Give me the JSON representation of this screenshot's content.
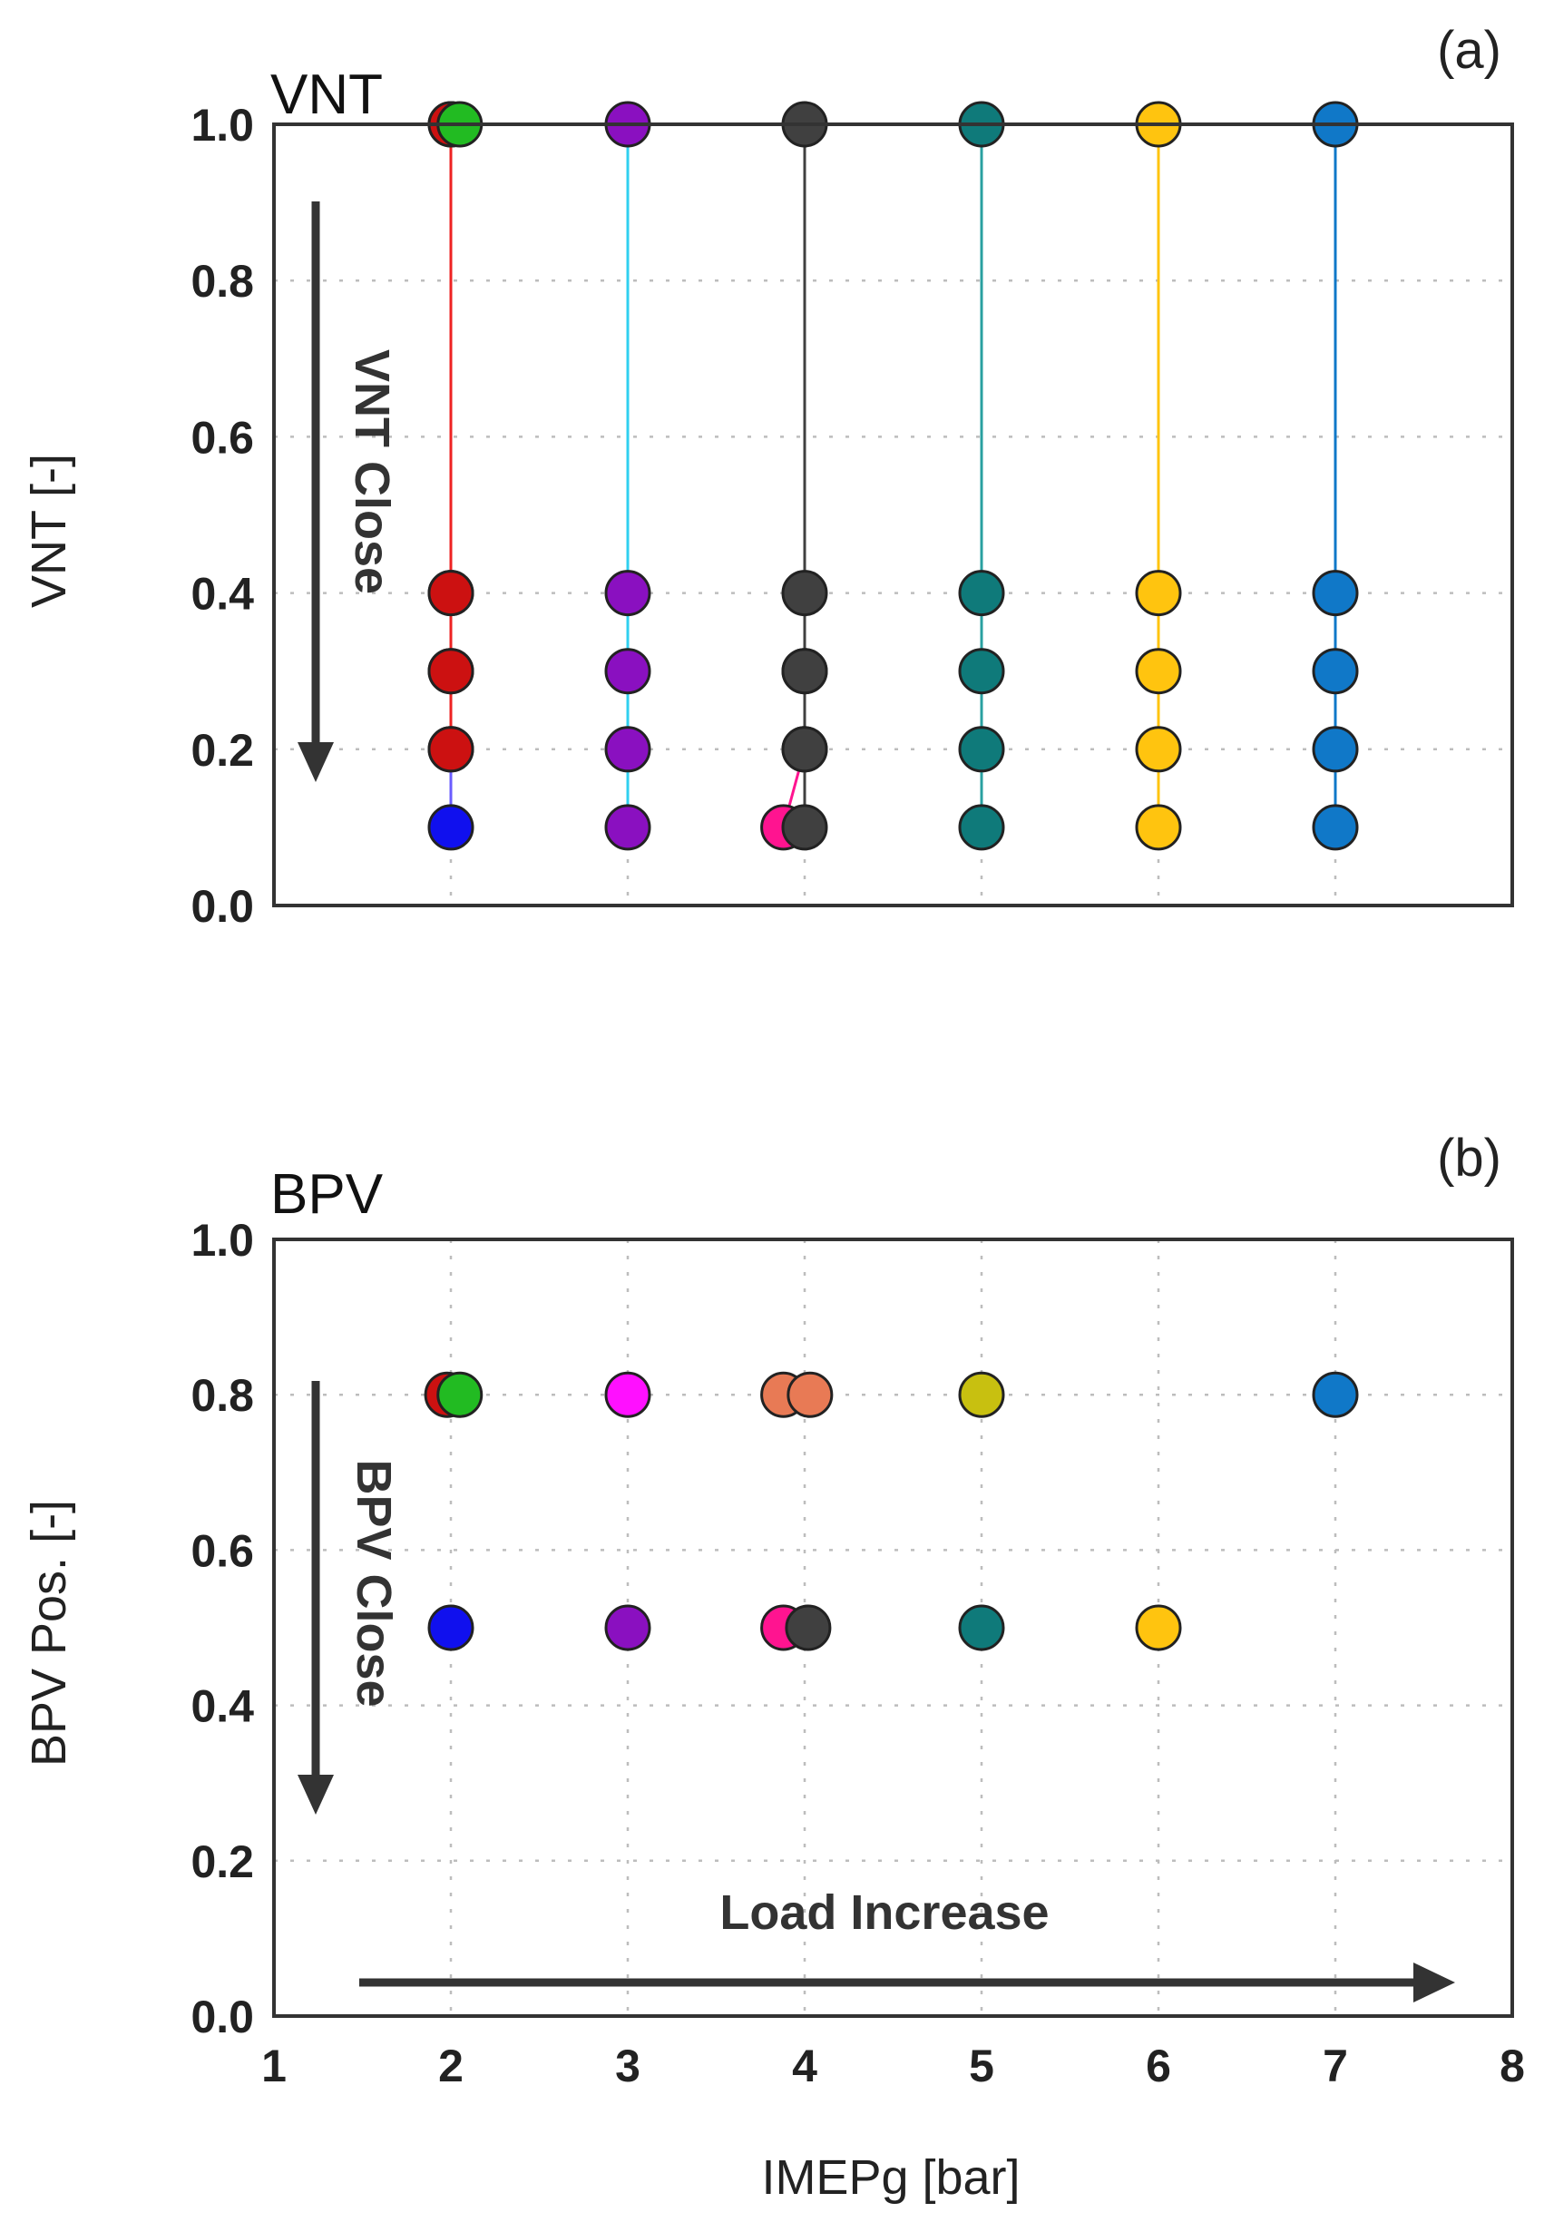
{
  "chart_data": [
    {
      "type": "scatter",
      "panel": "(a)",
      "title": "VNT",
      "xlabel": "",
      "ylabel": "VNT [-]",
      "xlim": [
        1,
        8
      ],
      "ylim": [
        0,
        1.0
      ],
      "yticks": [
        "0.0",
        "0.2",
        "0.4",
        "0.6",
        "0.8",
        "1.0"
      ],
      "grid": true,
      "annotation": "VNT Close",
      "series": [
        {
          "name": "2 bar blue",
          "color": "#1010ee",
          "line_color": "#6a5cff",
          "x": [
            2,
            2,
            2,
            2,
            2
          ],
          "y": [
            1.0,
            0.4,
            0.3,
            0.2,
            0.1
          ]
        },
        {
          "name": "2 bar red",
          "color": "#cc1111",
          "line_color": "#ee2222",
          "x": [
            2,
            2,
            2,
            2
          ],
          "y": [
            1.0,
            0.4,
            0.3,
            0.2
          ]
        },
        {
          "name": "2 bar green",
          "color": "#22bb22",
          "line_color": "#22bb22",
          "x": [
            2.05
          ],
          "y": [
            1.0
          ]
        },
        {
          "name": "3 bar purple",
          "color": "#8a10c0",
          "line_color": "#30d0f0",
          "x": [
            3,
            3,
            3,
            3,
            3
          ],
          "y": [
            1.0,
            0.4,
            0.3,
            0.2,
            0.1
          ]
        },
        {
          "name": "4 bar pink",
          "color": "#ff1490",
          "line_color": "#ff1490",
          "x": [
            3.88,
            4,
            4
          ],
          "y": [
            0.1,
            0.2,
            0.3
          ]
        },
        {
          "name": "4 bar black",
          "color": "#404040",
          "line_color": "#404040",
          "x": [
            4,
            4,
            4,
            4,
            4
          ],
          "y": [
            1.0,
            0.4,
            0.3,
            0.2,
            0.1
          ]
        },
        {
          "name": "5 bar teal",
          "color": "#0f7a7a",
          "line_color": "#2aa0a0",
          "x": [
            5,
            5,
            5,
            5,
            5
          ],
          "y": [
            1.0,
            0.4,
            0.3,
            0.2,
            0.1
          ]
        },
        {
          "name": "6 bar yellow",
          "color": "#ffc40f",
          "line_color": "#ffc40f",
          "x": [
            6,
            6,
            6,
            6,
            6
          ],
          "y": [
            1.0,
            0.4,
            0.3,
            0.2,
            0.1
          ]
        },
        {
          "name": "7 bar blue",
          "color": "#1078c8",
          "line_color": "#1078c8",
          "x": [
            7,
            7,
            7,
            7,
            7
          ],
          "y": [
            1.0,
            0.4,
            0.3,
            0.2,
            0.1
          ]
        }
      ]
    },
    {
      "type": "scatter",
      "panel": "(b)",
      "title": "BPV",
      "xlabel": "IMEPg [bar]",
      "ylabel": "BPV Pos. [-]",
      "xlim": [
        1,
        8
      ],
      "ylim": [
        0,
        1.0
      ],
      "xticks": [
        "1",
        "2",
        "3",
        "4",
        "5",
        "6",
        "7",
        "8"
      ],
      "yticks": [
        "0.0",
        "0.2",
        "0.4",
        "0.6",
        "0.8",
        "1.0"
      ],
      "grid": true,
      "annotations": [
        "BPV Close",
        "Load Increase"
      ],
      "series": [
        {
          "name": "2 bar red",
          "color": "#cc1111",
          "x": [
            1.98
          ],
          "y": [
            0.8
          ]
        },
        {
          "name": "2 bar green",
          "color": "#22bb22",
          "x": [
            2.05
          ],
          "y": [
            0.8
          ]
        },
        {
          "name": "2 bar blue",
          "color": "#1010ee",
          "x": [
            2
          ],
          "y": [
            0.5
          ]
        },
        {
          "name": "3 bar magenta",
          "color": "#ff10ff",
          "x": [
            3
          ],
          "y": [
            0.8
          ]
        },
        {
          "name": "3 bar purple",
          "color": "#8a10c0",
          "x": [
            3
          ],
          "y": [
            0.5
          ]
        },
        {
          "name": "4 bar orange",
          "color": "#e87a55",
          "x": [
            3.88,
            4.03
          ],
          "y": [
            0.8,
            0.8
          ]
        },
        {
          "name": "4 bar pink",
          "color": "#ff1490",
          "x": [
            3.88
          ],
          "y": [
            0.5
          ]
        },
        {
          "name": "4 bar black",
          "color": "#404040",
          "x": [
            4.02
          ],
          "y": [
            0.5
          ]
        },
        {
          "name": "5 bar olive",
          "color": "#c8c010",
          "x": [
            5
          ],
          "y": [
            0.8
          ]
        },
        {
          "name": "5 bar teal",
          "color": "#0f7a7a",
          "x": [
            5
          ],
          "y": [
            0.5
          ]
        },
        {
          "name": "6 bar yellow",
          "color": "#ffc40f",
          "x": [
            6
          ],
          "y": [
            0.5
          ]
        },
        {
          "name": "7 bar blue",
          "color": "#1078c8",
          "x": [
            7
          ],
          "y": [
            0.8
          ]
        }
      ]
    }
  ]
}
